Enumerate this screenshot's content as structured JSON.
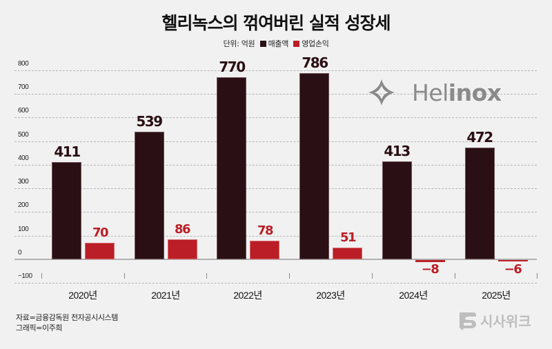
{
  "header": {
    "title": "헬리녹스의 꺾여버린 실적 성장세",
    "unit_label": "단위: 억원",
    "legend": [
      {
        "label": "매출액",
        "color": "#2a0f14"
      },
      {
        "label": "영업손익",
        "color": "#bb1e26"
      }
    ]
  },
  "logo": {
    "brand_prefix": "Hel",
    "brand_suffix": "inox",
    "icon": "helinox-diamond-icon"
  },
  "footer": {
    "source": "자료=금융감독원 전자공시시스템",
    "graphic": "그래픽=이주희",
    "publisher": "시사위크",
    "publisher_icon": "sisaweek-s-icon"
  },
  "chart_data": {
    "type": "bar",
    "title": "헬리녹스의 꺾여버린 실적 성장세",
    "xlabel": "",
    "ylabel": "억원",
    "categories": [
      "2020년",
      "2021년",
      "2022년",
      "2023년",
      "2024년",
      "2025년"
    ],
    "series": [
      {
        "name": "매출액",
        "color": "#2a0f14",
        "values": [
          411,
          539,
          770,
          786,
          413,
          472
        ]
      },
      {
        "name": "영업손익",
        "color": "#bb1e26",
        "values": [
          70,
          86,
          78,
          51,
          -8,
          -6
        ]
      }
    ],
    "yticks": [
      800,
      700,
      600,
      500,
      400,
      300,
      200,
      100,
      0,
      -100
    ],
    "ylim": [
      -100,
      800
    ],
    "grid": true,
    "legend_position": "top-center"
  }
}
